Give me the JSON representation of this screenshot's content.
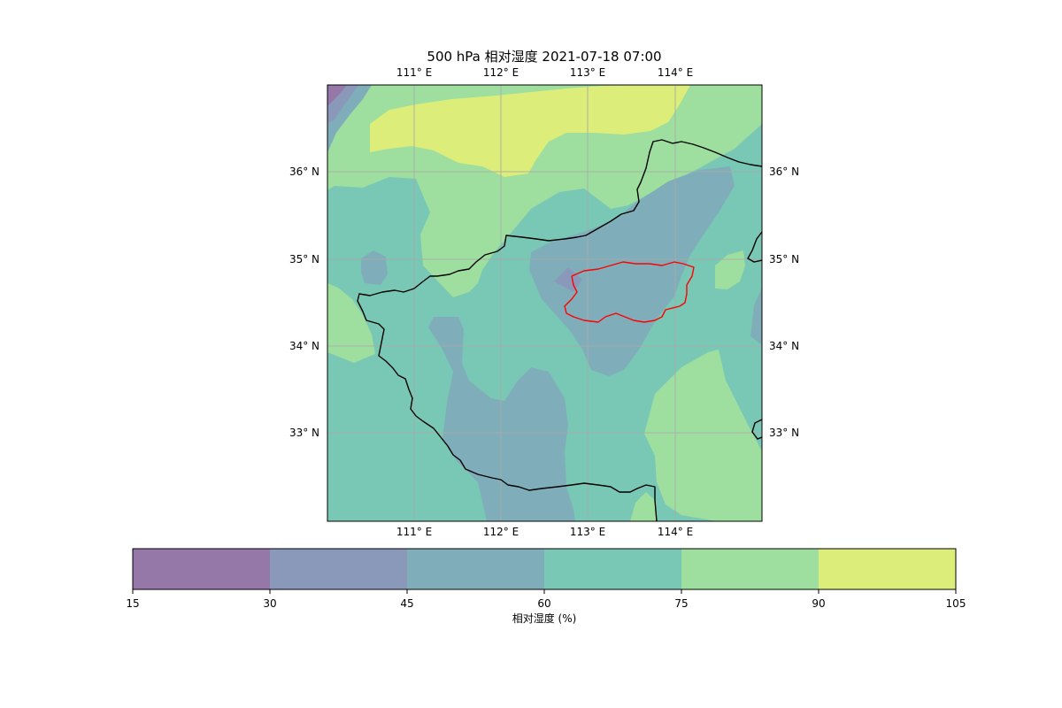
{
  "title": "500 hPa 相对湿度 2021-07-18 07:00",
  "map": {
    "lon_ticks": [
      {
        "value": 111,
        "label": "111° E"
      },
      {
        "value": 112,
        "label": "112° E"
      },
      {
        "value": 113,
        "label": "113° E"
      },
      {
        "value": 114,
        "label": "114° E"
      }
    ],
    "lat_ticks": [
      {
        "value": 36,
        "label": "36° N"
      },
      {
        "value": 35,
        "label": "35° N"
      },
      {
        "value": 34,
        "label": "34° N"
      },
      {
        "value": 33,
        "label": "33° N"
      }
    ],
    "extent": {
      "lon": [
        110,
        115
      ],
      "lat": [
        32,
        37
      ]
    },
    "gridlines": true,
    "province_border_color": "#000000",
    "highlight_region_color": "#ff0000"
  },
  "colorbar": {
    "label": "相对湿度 (%)",
    "levels": [
      15,
      30,
      45,
      60,
      75,
      90,
      105
    ],
    "tick_labels": [
      "15",
      "30",
      "45",
      "60",
      "75",
      "90",
      "105"
    ],
    "colors": [
      "#9578a8",
      "#8a98b9",
      "#7faeba",
      "#79c8b5",
      "#9ede9e",
      "#dced7a"
    ]
  }
}
